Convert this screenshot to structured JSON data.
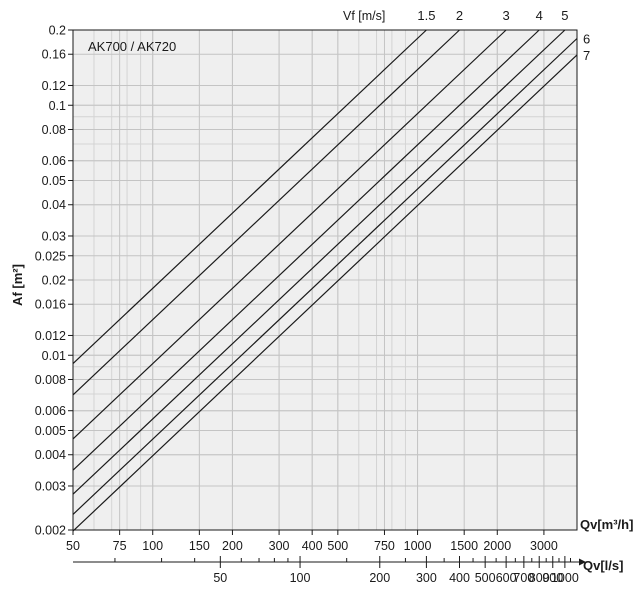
{
  "chart_data": {
    "type": "line",
    "title": "AK700 / AK720",
    "xlabel": "Qv[m³/h]",
    "ylabel": "Af [m²]",
    "x2label": "Qv[l/s]",
    "toplabel": "Vf [m/s]",
    "xscale": "log",
    "yscale": "log",
    "xlim": [
      50,
      4000
    ],
    "ylim": [
      0.002,
      0.2
    ],
    "x2lim": [
      13.9,
      1111
    ],
    "grid": true,
    "x_ticks": [
      50,
      75,
      100,
      150,
      200,
      300,
      400,
      500,
      750,
      1000,
      1500,
      2000,
      3000
    ],
    "x_tick_labels": [
      "50",
      "75",
      "100",
      "150",
      "200",
      "300",
      "400",
      "500",
      "750",
      "1000",
      "1500",
      "2000",
      "3000"
    ],
    "y_ticks": [
      0.002,
      0.003,
      0.004,
      0.005,
      0.006,
      0.008,
      0.01,
      0.012,
      0.016,
      0.02,
      0.025,
      0.03,
      0.04,
      0.05,
      0.06,
      0.08,
      0.1,
      0.12,
      0.16,
      0.2
    ],
    "y_tick_labels": [
      "0.002",
      "0.003",
      "0.004",
      "0.005",
      "0.006",
      "0.008",
      "0.01",
      "0.012",
      "0.016",
      "0.02",
      "0.025",
      "0.03",
      "0.04",
      "0.05",
      "0.06",
      "0.08",
      "0.1",
      "0.12",
      "0.16",
      "0.2"
    ],
    "x2_ticks": [
      50,
      100,
      200,
      300,
      400,
      500,
      600,
      700,
      800,
      900,
      1000
    ],
    "x2_tick_labels": [
      "50",
      "100",
      "200",
      "300",
      "400",
      "500",
      "600",
      "700",
      "800",
      "900",
      "1000"
    ],
    "series": [
      {
        "name": "1.5",
        "velocity": 1.5,
        "x": [
          50,
          1080
        ],
        "y": [
          0.00926,
          0.2
        ]
      },
      {
        "name": "2",
        "velocity": 2,
        "x": [
          50,
          1440
        ],
        "y": [
          0.00694,
          0.2
        ]
      },
      {
        "name": "3",
        "velocity": 3,
        "x": [
          50,
          2160
        ],
        "y": [
          0.00463,
          0.2
        ]
      },
      {
        "name": "4",
        "velocity": 4,
        "x": [
          50,
          2880
        ],
        "y": [
          0.00347,
          0.2
        ]
      },
      {
        "name": "5",
        "velocity": 5,
        "x": [
          50,
          3600
        ],
        "y": [
          0.00278,
          0.2
        ]
      },
      {
        "name": "6",
        "velocity": 6,
        "x": [
          50,
          4000
        ],
        "y": [
          0.00231,
          0.185
        ]
      },
      {
        "name": "7",
        "velocity": 7,
        "x": [
          50,
          4000
        ],
        "y": [
          0.00198,
          0.159
        ]
      }
    ]
  }
}
